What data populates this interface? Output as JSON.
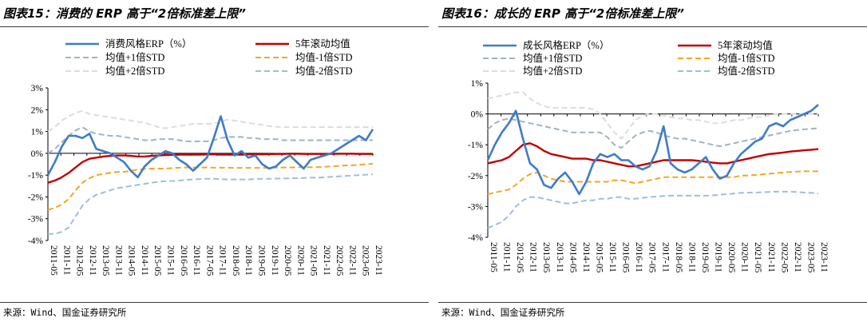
{
  "panels": [
    {
      "title": "图表15：消费的 ERP 高于“2倍标准差上限”",
      "source": "来源：Wind、国金证券研究所",
      "chart_data": {
        "type": "line",
        "ylim": [
          -4,
          3
        ],
        "yticks": [
          "3%",
          "2%",
          "1%",
          "0%",
          "-1%",
          "-2%",
          "-3%",
          "-4%"
        ],
        "ytick_values": [
          3,
          2,
          1,
          0,
          -1,
          -2,
          -3,
          -4
        ],
        "xticks": [
          "2011-05",
          "2011-11",
          "2012-05",
          "2012-11",
          "2013-05",
          "2013-11",
          "2014-05",
          "2014-11",
          "2015-05",
          "2015-11",
          "2016-05",
          "2016-11",
          "2017-05",
          "2017-11",
          "2018-05",
          "2018-11",
          "2019-05",
          "2019-11",
          "2020-05",
          "2020-11",
          "2021-05",
          "2021-11",
          "2022-05",
          "2022-11",
          "2023-05",
          "2023-11"
        ],
        "legend": [
          "消费风格ERP（%）",
          "5年滚动均值",
          "均值+1倍STD",
          "均值-1倍STD",
          "均值+2倍STD",
          "均值-2倍STD"
        ],
        "series": [
          {
            "name": "消费风格ERP（%）",
            "color": "#3e7cc8",
            "style": "solid",
            "values": [
              -1.0,
              -0.4,
              0.3,
              0.8,
              0.8,
              0.7,
              0.9,
              0.2,
              0.1,
              0.0,
              -0.2,
              -0.4,
              -0.8,
              -1.1,
              -0.6,
              -0.3,
              -0.1,
              0.1,
              0.0,
              -0.3,
              -0.5,
              -0.8,
              -0.5,
              -0.2,
              0.7,
              1.7,
              0.6,
              -0.1,
              0.1,
              -0.2,
              -0.1,
              -0.5,
              -0.7,
              -0.6,
              -0.3,
              -0.1,
              -0.4,
              -0.7,
              -0.3,
              -0.2,
              -0.1,
              0.0,
              0.2,
              0.4,
              0.6,
              0.8,
              0.6,
              1.1
            ]
          },
          {
            "name": "5年滚动均值",
            "color": "#c00000",
            "style": "solid",
            "values": [
              -1.35,
              -1.25,
              -1.1,
              -0.9,
              -0.65,
              -0.4,
              -0.25,
              -0.2,
              -0.15,
              -0.12,
              -0.1,
              -0.1,
              -0.12,
              -0.15,
              -0.15,
              -0.12,
              -0.1,
              -0.08,
              -0.07,
              -0.06,
              -0.06,
              -0.06,
              -0.06,
              -0.05,
              -0.05,
              -0.06,
              -0.06,
              -0.06,
              -0.06,
              -0.05,
              -0.05,
              -0.05,
              -0.04,
              -0.03,
              -0.03,
              -0.02,
              -0.02,
              -0.03,
              -0.03,
              -0.03,
              -0.03,
              -0.03,
              -0.02,
              -0.02,
              -0.02,
              -0.03,
              -0.03,
              -0.03
            ]
          },
          {
            "name": "均值+1倍STD",
            "color": "#9fb3c4",
            "style": "dash",
            "values": [
              0.0,
              0.2,
              0.5,
              0.8,
              1.05,
              1.2,
              1.0,
              0.9,
              0.85,
              0.8,
              0.8,
              0.75,
              0.7,
              0.65,
              0.6,
              0.6,
              0.65,
              0.65,
              0.65,
              0.6,
              0.55,
              0.55,
              0.55,
              0.55,
              0.6,
              0.7,
              0.75,
              0.75,
              0.75,
              0.7,
              0.7,
              0.65,
              0.65,
              0.65,
              0.6,
              0.6,
              0.6,
              0.6,
              0.6,
              0.6,
              0.6,
              0.6,
              0.6,
              0.6,
              0.6,
              0.6,
              0.6,
              0.6
            ]
          },
          {
            "name": "均值-1倍STD",
            "color": "#f5a623",
            "style": "dash",
            "values": [
              -2.6,
              -2.5,
              -2.35,
              -2.1,
              -1.7,
              -1.35,
              -1.15,
              -1.0,
              -0.95,
              -0.9,
              -0.85,
              -0.85,
              -0.8,
              -0.75,
              -0.72,
              -0.7,
              -0.7,
              -0.7,
              -0.68,
              -0.66,
              -0.65,
              -0.65,
              -0.65,
              -0.65,
              -0.66,
              -0.66,
              -0.66,
              -0.67,
              -0.67,
              -0.67,
              -0.67,
              -0.67,
              -0.67,
              -0.66,
              -0.65,
              -0.65,
              -0.64,
              -0.64,
              -0.64,
              -0.64,
              -0.62,
              -0.6,
              -0.58,
              -0.56,
              -0.55,
              -0.53,
              -0.5,
              -0.48
            ]
          },
          {
            "name": "均值+2倍STD",
            "color": "#dcdcdc",
            "style": "dash",
            "values": [
              1.0,
              1.2,
              1.5,
              1.7,
              1.85,
              1.95,
              1.8,
              1.75,
              1.7,
              1.65,
              1.6,
              1.55,
              1.5,
              1.45,
              1.4,
              1.3,
              1.2,
              1.15,
              1.2,
              1.25,
              1.3,
              1.35,
              1.35,
              1.35,
              1.35,
              1.45,
              1.55,
              1.5,
              1.45,
              1.4,
              1.35,
              1.3,
              1.25,
              1.22,
              1.2,
              1.2,
              1.2,
              1.2,
              1.2,
              1.2,
              1.2,
              1.2,
              1.2,
              1.2,
              1.2,
              1.2,
              1.2,
              1.2
            ]
          },
          {
            "name": "均值-2倍STD",
            "color": "#9dbde0",
            "style": "dash",
            "values": [
              -3.7,
              -3.7,
              -3.6,
              -3.4,
              -2.9,
              -2.4,
              -2.1,
              -1.9,
              -1.8,
              -1.7,
              -1.6,
              -1.55,
              -1.5,
              -1.45,
              -1.4,
              -1.35,
              -1.3,
              -1.28,
              -1.27,
              -1.25,
              -1.22,
              -1.2,
              -1.18,
              -1.17,
              -1.17,
              -1.18,
              -1.2,
              -1.2,
              -1.2,
              -1.2,
              -1.18,
              -1.17,
              -1.17,
              -1.16,
              -1.15,
              -1.15,
              -1.14,
              -1.13,
              -1.12,
              -1.12,
              -1.1,
              -1.08,
              -1.06,
              -1.04,
              -1.02,
              -1.0,
              -0.98,
              -0.96
            ]
          }
        ]
      }
    },
    {
      "title": "图表16：成长的 ERP 高于“2倍标准差上限”",
      "source": "来源：Wind、国金证券研究所",
      "chart_data": {
        "type": "line",
        "ylim": [
          -4,
          1
        ],
        "yticks": [
          "1%",
          "0%",
          "-1%",
          "-2%",
          "-3%",
          "-4%"
        ],
        "ytick_values": [
          1,
          0,
          -1,
          -2,
          -3,
          -4
        ],
        "xticks": [
          "2011-05",
          "2011-11",
          "2012-05",
          "2012-11",
          "2013-05",
          "2013-11",
          "2014-05",
          "2014-11",
          "2015-05",
          "2015-11",
          "2016-05",
          "2016-11",
          "2017-05",
          "2017-11",
          "2018-05",
          "2018-11",
          "2019-05",
          "2019-11",
          "2020-05",
          "2020-11",
          "2021-05",
          "2021-11",
          "2022-05",
          "2022-11",
          "2023-05",
          "2023-11"
        ],
        "legend": [
          "成长风格ERP（%）",
          "5年滚动均值",
          "均值+1倍STD",
          "均值-1倍STD",
          "均值+2倍STD",
          "均值-2倍STD"
        ],
        "series": [
          {
            "name": "成长风格ERP（%）",
            "color": "#3e7cc8",
            "style": "solid",
            "values": [
              -1.5,
              -1.0,
              -0.6,
              -0.3,
              0.1,
              -0.8,
              -1.6,
              -1.8,
              -2.3,
              -2.4,
              -2.1,
              -1.9,
              -2.2,
              -2.6,
              -2.2,
              -1.6,
              -1.3,
              -1.4,
              -1.3,
              -1.5,
              -1.5,
              -1.7,
              -1.8,
              -1.7,
              -1.2,
              -0.4,
              -1.6,
              -1.8,
              -1.9,
              -1.8,
              -1.6,
              -1.4,
              -1.8,
              -2.1,
              -2.0,
              -1.6,
              -1.3,
              -1.1,
              -0.9,
              -0.8,
              -0.4,
              -0.3,
              -0.4,
              -0.2,
              -0.1,
              0.0,
              0.1,
              0.3
            ]
          },
          {
            "name": "5年滚动均值",
            "color": "#c00000",
            "style": "solid",
            "values": [
              -1.6,
              -1.55,
              -1.5,
              -1.4,
              -1.2,
              -1.0,
              -0.95,
              -1.05,
              -1.2,
              -1.3,
              -1.35,
              -1.4,
              -1.45,
              -1.45,
              -1.45,
              -1.5,
              -1.5,
              -1.55,
              -1.6,
              -1.65,
              -1.7,
              -1.7,
              -1.65,
              -1.6,
              -1.55,
              -1.5,
              -1.5,
              -1.5,
              -1.5,
              -1.5,
              -1.52,
              -1.55,
              -1.58,
              -1.6,
              -1.6,
              -1.55,
              -1.5,
              -1.45,
              -1.4,
              -1.35,
              -1.3,
              -1.28,
              -1.25,
              -1.22,
              -1.2,
              -1.18,
              -1.16,
              -1.14
            ]
          },
          {
            "name": "均值+1倍STD",
            "color": "#9fb3c4",
            "style": "dash",
            "values": [
              -0.5,
              -0.3,
              -0.2,
              -0.15,
              -0.2,
              -0.25,
              -0.3,
              -0.35,
              -0.4,
              -0.45,
              -0.5,
              -0.55,
              -0.6,
              -0.6,
              -0.6,
              -0.6,
              -0.6,
              -0.75,
              -1.0,
              -1.1,
              -0.9,
              -0.7,
              -0.6,
              -0.55,
              -0.6,
              -0.7,
              -0.75,
              -0.8,
              -0.8,
              -0.85,
              -0.9,
              -0.95,
              -1.0,
              -1.05,
              -1.0,
              -0.95,
              -0.9,
              -0.85,
              -0.8,
              -0.75,
              -0.7,
              -0.65,
              -0.6,
              -0.55,
              -0.52,
              -0.5,
              -0.48,
              -0.46
            ]
          },
          {
            "name": "均值-1倍STD",
            "color": "#f5a623",
            "style": "dash",
            "values": [
              -2.6,
              -2.55,
              -2.5,
              -2.45,
              -2.3,
              -2.1,
              -1.95,
              -1.9,
              -2.0,
              -2.1,
              -2.15,
              -2.2,
              -2.2,
              -2.2,
              -2.2,
              -2.2,
              -2.2,
              -2.2,
              -2.15,
              -2.15,
              -2.2,
              -2.25,
              -2.2,
              -2.15,
              -2.1,
              -2.05,
              -2.05,
              -2.05,
              -2.05,
              -2.05,
              -2.05,
              -2.05,
              -2.05,
              -2.05,
              -2.05,
              -2.05,
              -2.0,
              -2.0,
              -1.98,
              -1.96,
              -1.94,
              -1.92,
              -1.9,
              -1.88,
              -1.87,
              -1.86,
              -1.86,
              -1.86
            ]
          },
          {
            "name": "均值+2倍STD",
            "color": "#dcdcdc",
            "style": "dash",
            "values": [
              0.5,
              0.55,
              0.6,
              0.65,
              0.7,
              0.7,
              0.5,
              0.35,
              0.25,
              0.2,
              0.2,
              0.2,
              0.2,
              0.2,
              0.2,
              0.15,
              0.0,
              -0.3,
              -0.6,
              -0.8,
              -0.5,
              -0.2,
              -0.05,
              0.0,
              0.0,
              -0.05,
              -0.1,
              -0.15,
              -0.15,
              -0.2,
              -0.2,
              -0.25,
              -0.3,
              -0.3,
              -0.25,
              -0.2,
              -0.2,
              -0.15,
              -0.1,
              -0.1,
              -0.05,
              0.0,
              0.0,
              0.0,
              0.0,
              0.0,
              0.0,
              0.0
            ]
          },
          {
            "name": "均值-2倍STD",
            "color": "#9dbde0",
            "style": "dash",
            "values": [
              -3.7,
              -3.6,
              -3.5,
              -3.3,
              -3.0,
              -2.8,
              -2.7,
              -2.7,
              -2.75,
              -2.8,
              -2.85,
              -2.9,
              -2.9,
              -2.85,
              -2.8,
              -2.8,
              -2.75,
              -2.75,
              -2.7,
              -2.7,
              -2.75,
              -2.75,
              -2.72,
              -2.7,
              -2.68,
              -2.66,
              -2.65,
              -2.65,
              -2.65,
              -2.65,
              -2.65,
              -2.65,
              -2.64,
              -2.62,
              -2.6,
              -2.58,
              -2.56,
              -2.55,
              -2.55,
              -2.54,
              -2.53,
              -2.52,
              -2.52,
              -2.52,
              -2.53,
              -2.55,
              -2.56,
              -2.58
            ]
          }
        ]
      }
    }
  ]
}
